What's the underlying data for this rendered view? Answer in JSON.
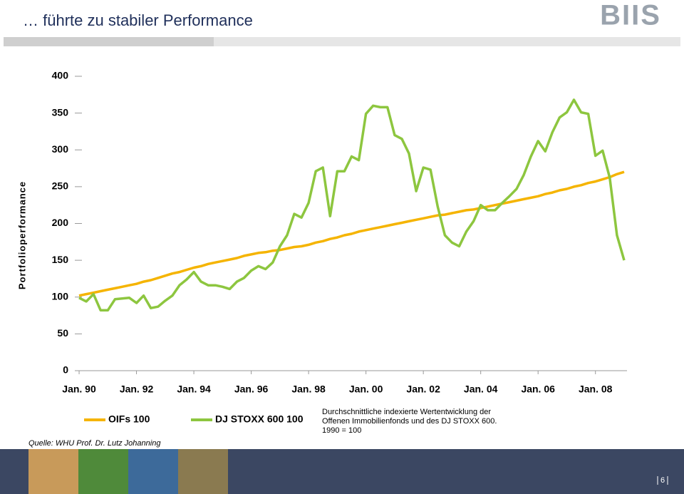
{
  "header": {
    "title": "… führte zu stabiler Performance",
    "logo": "BIIS"
  },
  "chart_data": {
    "type": "line",
    "y_label": "Portfolioperformance",
    "x": [
      1990,
      1990.25,
      1990.5,
      1990.75,
      1991,
      1991.25,
      1991.5,
      1991.75,
      1992,
      1992.25,
      1992.5,
      1992.75,
      1993,
      1993.25,
      1993.5,
      1993.75,
      1994,
      1994.25,
      1994.5,
      1994.75,
      1995,
      1995.25,
      1995.5,
      1995.75,
      1996,
      1996.25,
      1996.5,
      1996.75,
      1997,
      1997.25,
      1997.5,
      1997.75,
      1998,
      1998.25,
      1998.5,
      1998.75,
      1999,
      1999.25,
      1999.5,
      1999.75,
      2000,
      2000.25,
      2000.5,
      2000.75,
      2001,
      2001.25,
      2001.5,
      2001.75,
      2002,
      2002.25,
      2002.5,
      2002.75,
      2003,
      2003.25,
      2003.5,
      2003.75,
      2004,
      2004.25,
      2004.5,
      2004.75,
      2005,
      2005.25,
      2005.5,
      2005.75,
      2006,
      2006.25,
      2006.5,
      2006.75,
      2007,
      2007.25,
      2007.5,
      2007.75,
      2008,
      2008.25,
      2008.5,
      2008.75,
      2009
    ],
    "series": [
      {
        "name": "OIFs 100",
        "color": "#f5b400",
        "values": [
          102,
          104,
          106,
          108,
          110,
          112,
          114,
          116,
          118,
          121,
          123,
          126,
          129,
          132,
          134,
          137,
          140,
          142,
          145,
          147,
          149,
          151,
          153,
          156,
          158,
          160,
          161,
          163,
          164,
          166,
          168,
          169,
          171,
          174,
          176,
          179,
          181,
          184,
          186,
          189,
          191,
          193,
          195,
          197,
          199,
          201,
          203,
          205,
          207,
          209,
          211,
          212,
          214,
          216,
          218,
          219,
          221,
          223,
          225,
          227,
          229,
          231,
          233,
          235,
          237,
          240,
          242,
          245,
          247,
          250,
          252,
          255,
          257,
          260,
          263,
          267,
          270
        ]
      },
      {
        "name": "DJ STOXX 600 100",
        "color": "#8dc63f",
        "values": [
          99,
          94,
          104,
          82,
          82,
          97,
          98,
          99,
          92,
          102,
          85,
          87,
          95,
          102,
          116,
          124,
          134,
          121,
          116,
          116,
          114,
          111,
          121,
          126,
          136,
          142,
          138,
          147,
          169,
          184,
          213,
          208,
          228,
          271,
          276,
          210,
          271,
          271,
          291,
          286,
          349,
          360,
          358,
          358,
          320,
          315,
          295,
          244,
          276,
          273,
          223,
          184,
          174,
          169,
          189,
          203,
          225,
          218,
          218,
          228,
          237,
          247,
          266,
          291,
          312,
          298,
          324,
          344,
          351,
          368,
          351,
          349,
          292,
          299,
          262,
          184,
          150
        ]
      }
    ],
    "xlim": [
      1989.85,
      2009.1
    ],
    "xticks": [
      {
        "value": 1990,
        "label": "Jan. 90"
      },
      {
        "value": 1992,
        "label": "Jan. 92"
      },
      {
        "value": 1994,
        "label": "Jan. 94"
      },
      {
        "value": 1996,
        "label": "Jan. 96"
      },
      {
        "value": 1998,
        "label": "Jan. 98"
      },
      {
        "value": 2000,
        "label": "Jan. 00"
      },
      {
        "value": 2002,
        "label": "Jan. 02"
      },
      {
        "value": 2004,
        "label": "Jan. 04"
      },
      {
        "value": 2006,
        "label": "Jan. 06"
      },
      {
        "value": 2008,
        "label": "Jan. 08"
      }
    ],
    "ylim": [
      0,
      400
    ],
    "yticks": [
      0,
      50,
      100,
      150,
      200,
      250,
      300,
      350,
      400
    ]
  },
  "description": [
    "Durchschnittliche indexierte Wertentwicklung der",
    "Offenen Immobilienfonds und des DJ STOXX 600.",
    "1990 = 100"
  ],
  "source": "Quelle:  WHU Prof. Dr. Lutz Johanning",
  "footer": {
    "page_number": "6"
  }
}
